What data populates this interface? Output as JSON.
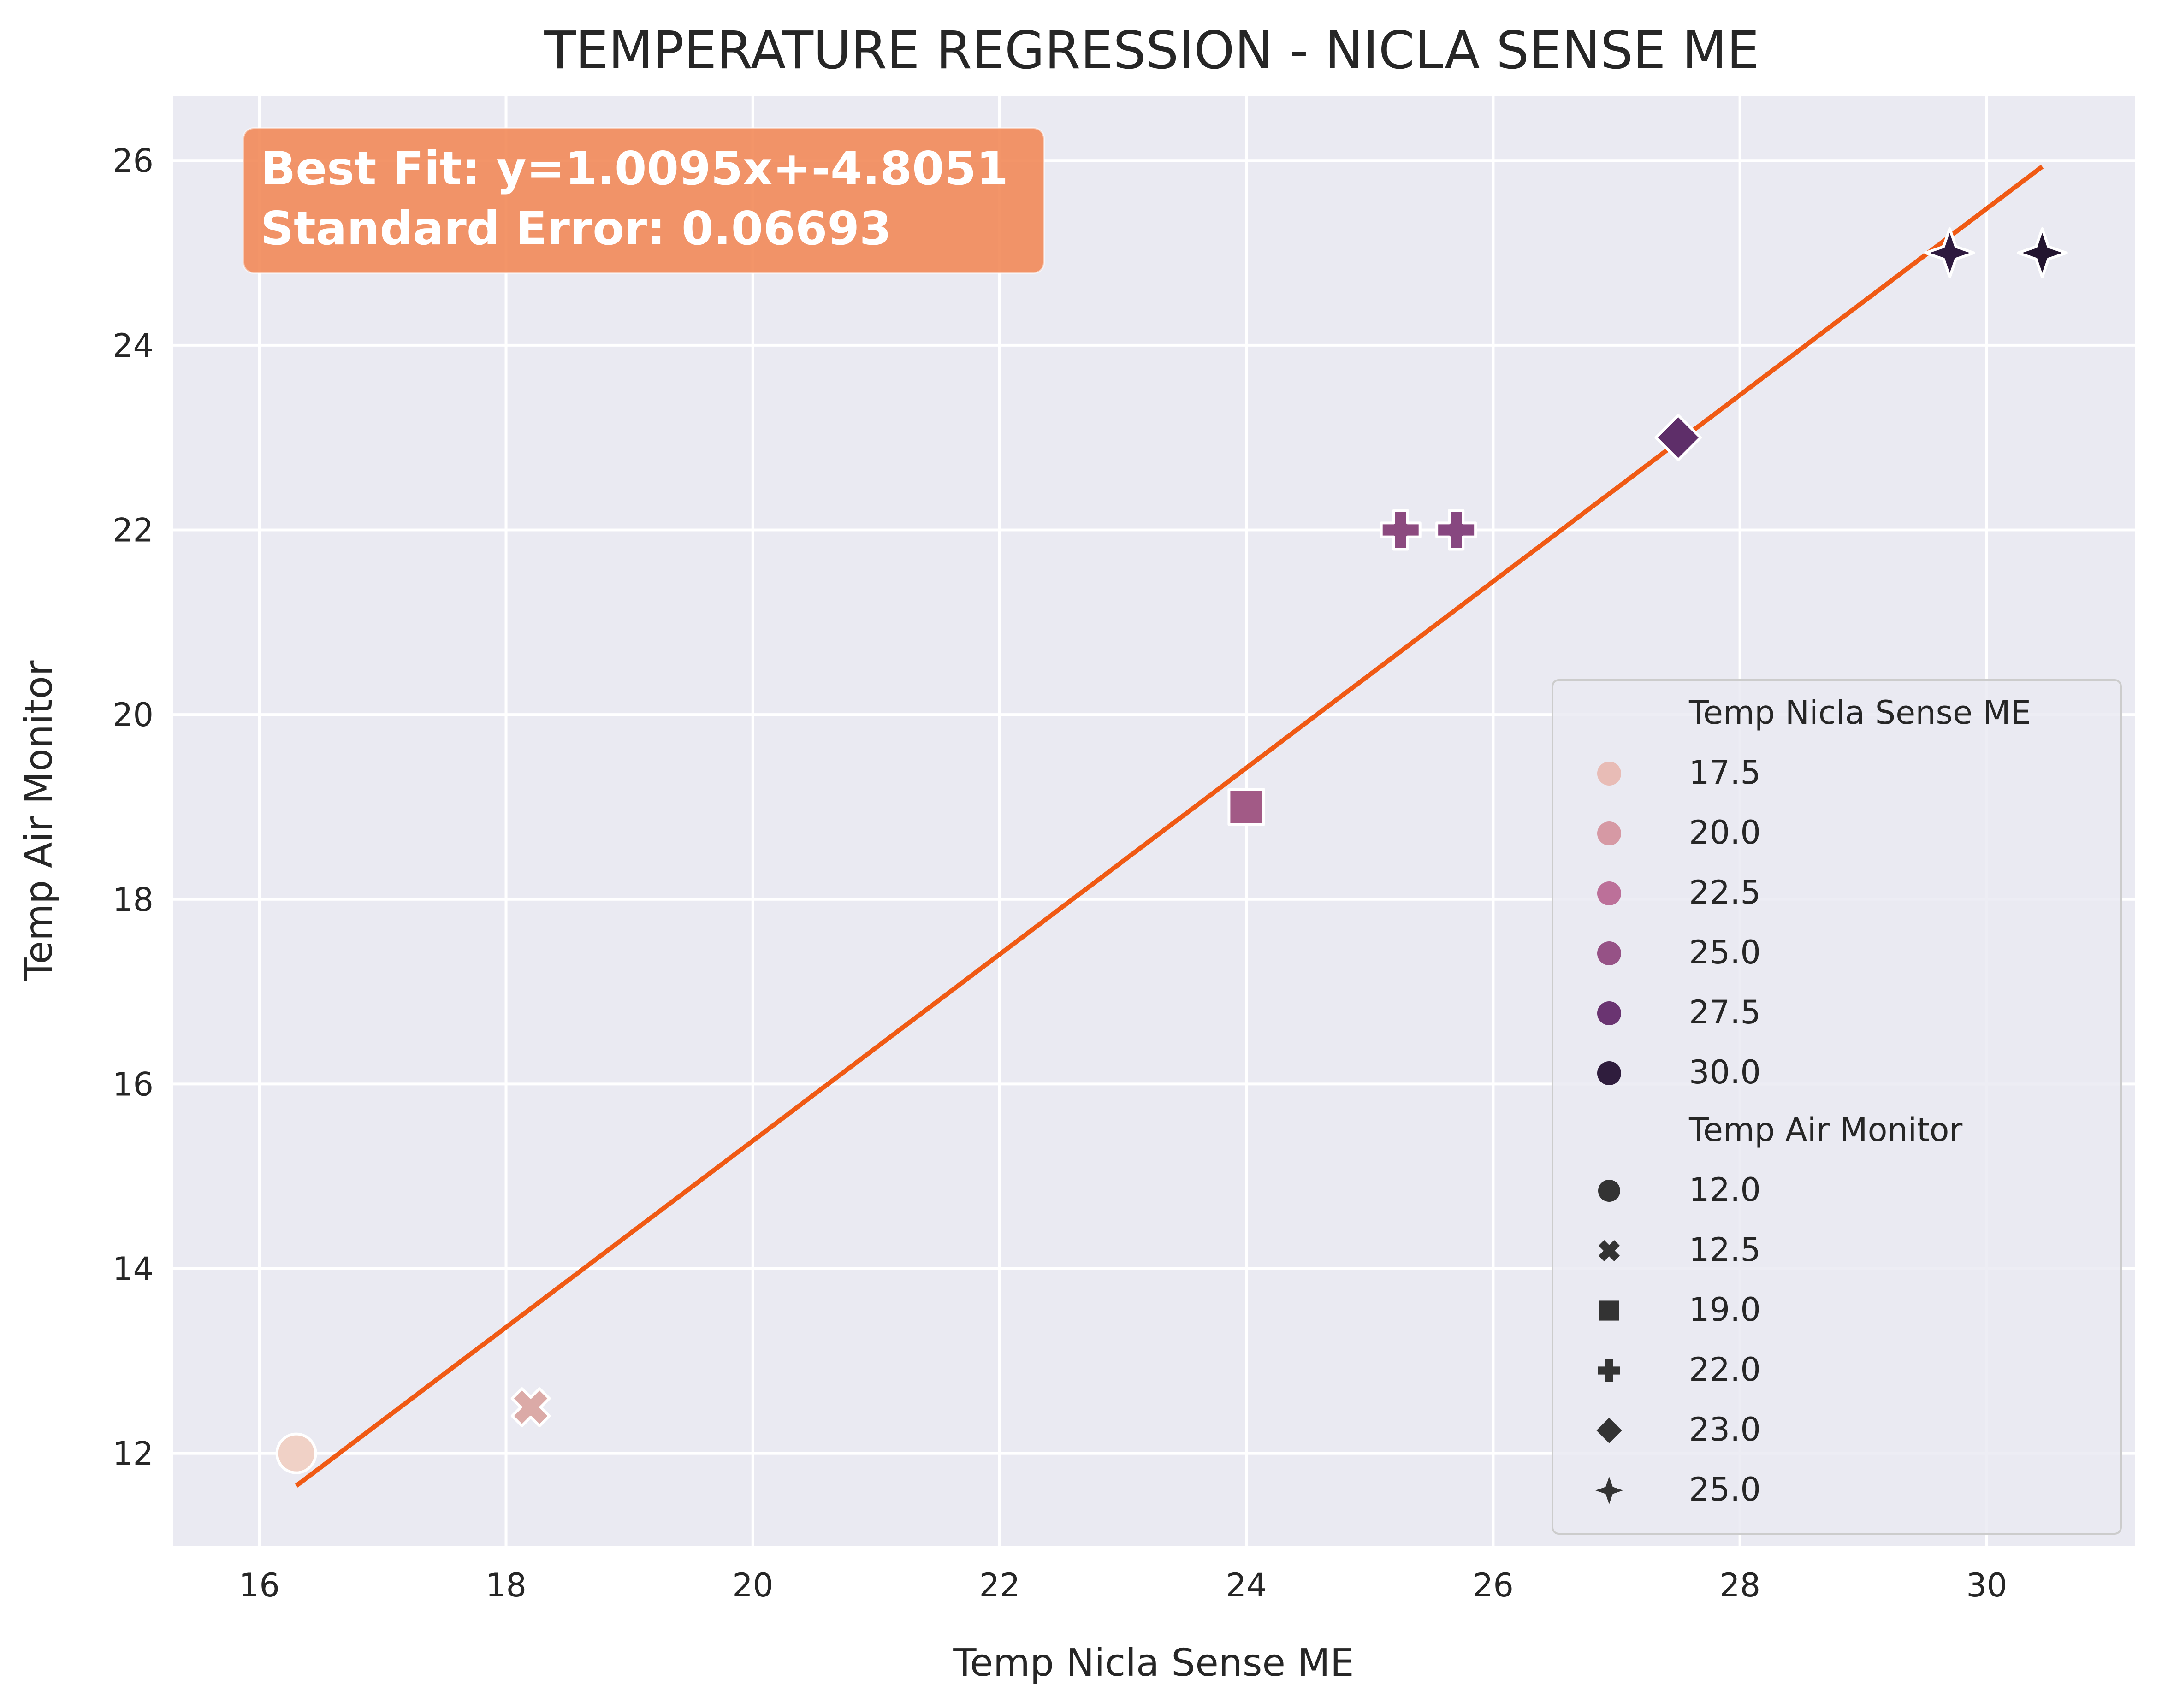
{
  "chart_data": {
    "type": "scatter",
    "title": "TEMPERATURE REGRESSION - NICLA SENSE ME",
    "xlabel": "Temp Nicla Sense ME",
    "ylabel": "Temp Air Monitor",
    "xlim": [
      15.3,
      31.2
    ],
    "ylim": [
      11.0,
      26.7
    ],
    "xticks": [
      16,
      18,
      20,
      22,
      24,
      26,
      28,
      30
    ],
    "yticks": [
      12,
      14,
      16,
      18,
      20,
      22,
      24,
      26
    ],
    "grid": true,
    "points": [
      {
        "x": 16.3,
        "y": 12.0,
        "color": "#f0d1c6",
        "marker": "circle"
      },
      {
        "x": 18.2,
        "y": 12.5,
        "color": "#dbaaa7",
        "marker": "x"
      },
      {
        "x": 24.0,
        "y": 19.0,
        "color": "#a25a86",
        "marker": "square"
      },
      {
        "x": 25.25,
        "y": 22.0,
        "color": "#8c4a7f",
        "marker": "plus"
      },
      {
        "x": 25.7,
        "y": 22.0,
        "color": "#874780",
        "marker": "plus"
      },
      {
        "x": 27.5,
        "y": 23.0,
        "color": "#5e2e69",
        "marker": "diamond"
      },
      {
        "x": 29.7,
        "y": 25.0,
        "color": "#2e1a3f",
        "marker": "star4"
      },
      {
        "x": 30.45,
        "y": 25.0,
        "color": "#23152f",
        "marker": "star4"
      }
    ],
    "fit_line": {
      "slope": 1.0095,
      "intercept": -4.8051,
      "x_range": [
        16.3,
        30.45
      ],
      "color": "#f05a14"
    },
    "annotation": {
      "lines": [
        "Best Fit: y=1.0095x+-4.8051",
        "Standard Error: 0.06693"
      ],
      "color": "#f28a59"
    },
    "legend": {
      "placement": "lower-right",
      "hue_title": "Temp Nicla Sense ME",
      "hue_entries": [
        {
          "label": "17.5",
          "color": "#e8bcb6"
        },
        {
          "label": "20.0",
          "color": "#d699a4"
        },
        {
          "label": "22.5",
          "color": "#bc7099"
        },
        {
          "label": "25.0",
          "color": "#965286"
        },
        {
          "label": "27.5",
          "color": "#6a3471"
        },
        {
          "label": "30.0",
          "color": "#2f1d3d"
        }
      ],
      "style_title": "Temp Air Monitor",
      "style_entries": [
        {
          "label": "12.0",
          "marker": "circle"
        },
        {
          "label": "12.5",
          "marker": "x"
        },
        {
          "label": "19.0",
          "marker": "square"
        },
        {
          "label": "22.0",
          "marker": "plus"
        },
        {
          "label": "23.0",
          "marker": "diamond"
        },
        {
          "label": "25.0",
          "marker": "star4"
        }
      ],
      "style_color": "#333333"
    },
    "plot_background": "#eaeaf2",
    "grid_color": "#ffffff"
  }
}
